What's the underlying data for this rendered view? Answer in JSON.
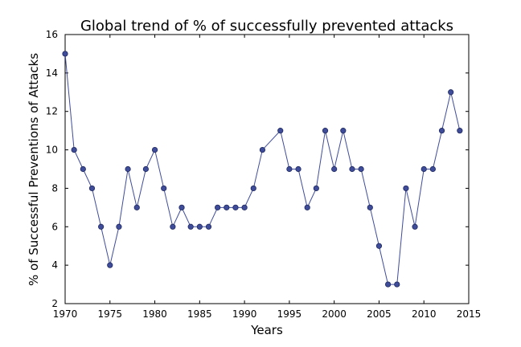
{
  "chart_data": {
    "type": "line",
    "title": "Global trend of % of successfully prevented attacks",
    "xlabel": "Years",
    "ylabel": "% of Successful Preventions of Attacks",
    "xlim": [
      1970,
      2015
    ],
    "ylim": [
      2,
      16
    ],
    "xticks": [
      1970,
      1975,
      1980,
      1985,
      1990,
      1995,
      2000,
      2005,
      2010,
      2015
    ],
    "yticks": [
      2,
      4,
      6,
      8,
      10,
      12,
      14,
      16
    ],
    "grid": false,
    "series": [
      {
        "color": "#3f4c9a",
        "x": [
          1970,
          1971,
          1972,
          1973,
          1974,
          1975,
          1976,
          1977,
          1978,
          1979,
          1980,
          1981,
          1982,
          1983,
          1984,
          1985,
          1986,
          1987,
          1988,
          1989,
          1990,
          1991,
          1992,
          1994,
          1995,
          1996,
          1997,
          1998,
          1999,
          2000,
          2001,
          2002,
          2003,
          2004,
          2005,
          2006,
          2007,
          2008,
          2009,
          2010,
          2011,
          2012,
          2013,
          2014
        ],
        "y": [
          15,
          10,
          9,
          8,
          6,
          4,
          6,
          9,
          7,
          9,
          10,
          8,
          6,
          7,
          6,
          6,
          6,
          7,
          7,
          7,
          7,
          8,
          10,
          11,
          9,
          9,
          7,
          8,
          11,
          9,
          11,
          9,
          9,
          7,
          5,
          3,
          3,
          8,
          6,
          9,
          9,
          11,
          13,
          11
        ]
      }
    ]
  }
}
